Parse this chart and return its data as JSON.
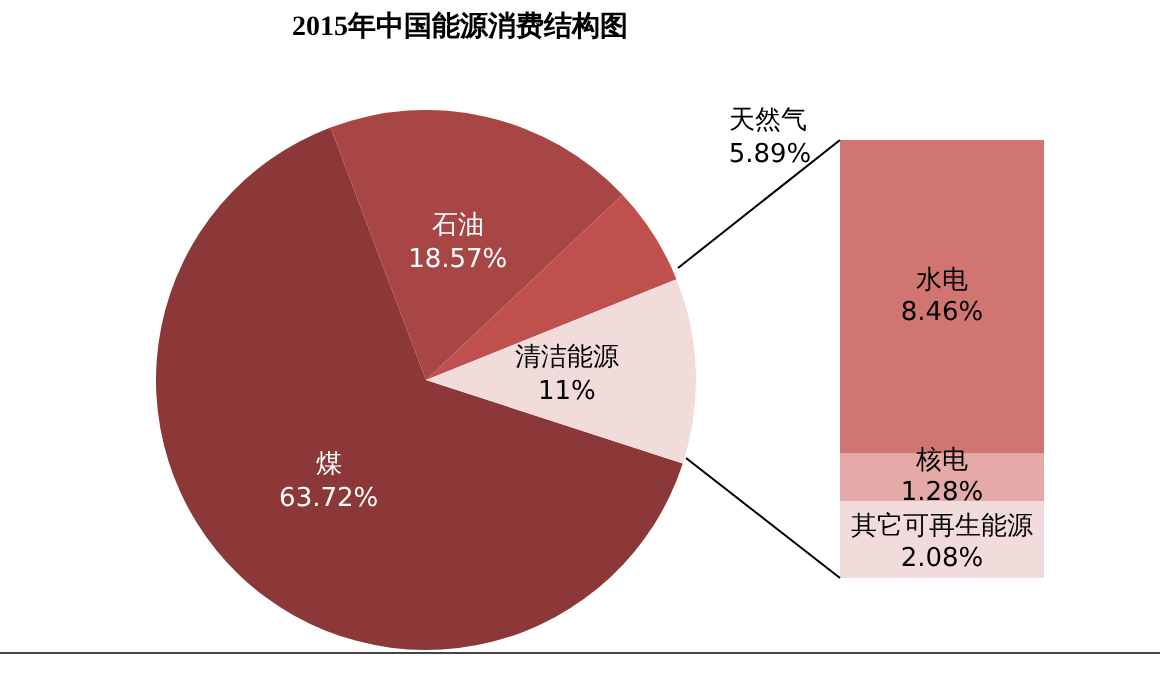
{
  "chart_data": [
    {
      "type": "pie",
      "title": "2015年中国能源消费结构图",
      "categories": [
        "煤",
        "石油",
        "天然气",
        "清洁能源"
      ],
      "values": [
        63.72,
        18.57,
        5.89,
        11
      ],
      "colors": [
        "#8c3838",
        "#a84545",
        "#c0504d",
        "#f2dcdb"
      ],
      "value_labels": [
        "63.72%",
        "18.57%",
        "5.89%",
        "11%"
      ]
    },
    {
      "type": "bar",
      "stacked": true,
      "categories": [
        null
      ],
      "series": [
        {
          "name": "其它可再生能源",
          "color": "#f2dcdb",
          "values": [
            2.08
          ],
          "value_labels": [
            "2.08%"
          ]
        },
        {
          "name": "核电",
          "color": "#e3aaa8",
          "values": [
            1.28
          ],
          "value_labels": [
            "1.28%"
          ]
        },
        {
          "name": "水电",
          "color": "#d07572",
          "values": [
            8.46
          ],
          "value_labels": [
            "8.46%"
          ]
        }
      ]
    }
  ]
}
